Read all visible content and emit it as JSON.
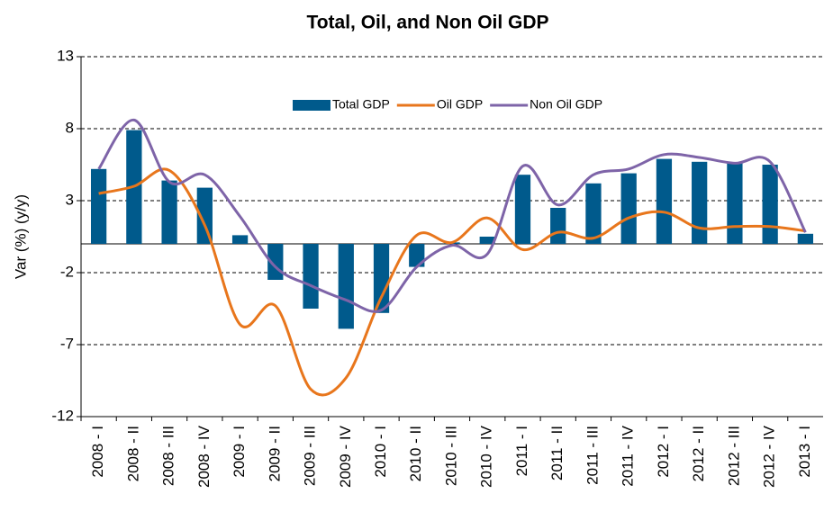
{
  "chart_data": {
    "type": "bar_line",
    "title": "Total, Oil, and Non Oil GDP",
    "y_label": "Var (%) (y/y)",
    "categories": [
      "2008 - I",
      "2008 - II",
      "2008 - III",
      "2008 - IV",
      "2009 - I",
      "2009 - II",
      "2009 - III",
      "2009 - IV",
      "2010 - I",
      "2010 - II",
      "2010 - III",
      "2010 - IV",
      "2011 - I",
      "2011 - II",
      "2011 - III",
      "2011 - IV",
      "2012 - I",
      "2012 - II",
      "2012 - III",
      "2012 - IV",
      "2013 - I"
    ],
    "series": [
      {
        "name": "Total GDP",
        "kind": "bar",
        "color": "#005a8c",
        "values": [
          5.2,
          7.9,
          4.4,
          3.9,
          0.6,
          -2.5,
          -4.5,
          -5.9,
          -4.8,
          -1.6,
          0.1,
          0.5,
          4.8,
          2.5,
          4.2,
          4.9,
          5.9,
          5.7,
          5.6,
          5.5,
          0.7
        ]
      },
      {
        "name": "Oil GDP",
        "kind": "line",
        "color": "#e8761c",
        "values": [
          3.5,
          4.0,
          5.1,
          1.3,
          -5.6,
          -4.3,
          -10.1,
          -9.3,
          -3.7,
          0.6,
          0.1,
          1.8,
          -0.4,
          0.8,
          0.4,
          1.8,
          2.2,
          1.1,
          1.2,
          1.2,
          0.9
        ]
      },
      {
        "name": "Non Oil GDP",
        "kind": "line",
        "color": "#7e64a8",
        "values": [
          5.2,
          8.6,
          4.3,
          4.8,
          1.9,
          -1.6,
          -2.9,
          -3.9,
          -4.6,
          -1.6,
          -0.1,
          -0.7,
          5.4,
          2.7,
          4.8,
          5.2,
          6.2,
          6.0,
          5.6,
          5.7,
          0.8
        ]
      }
    ],
    "ylim": [
      -12,
      13
    ],
    "yticks": [
      -12,
      -7,
      -2,
      3,
      8,
      13
    ],
    "grid": true
  }
}
